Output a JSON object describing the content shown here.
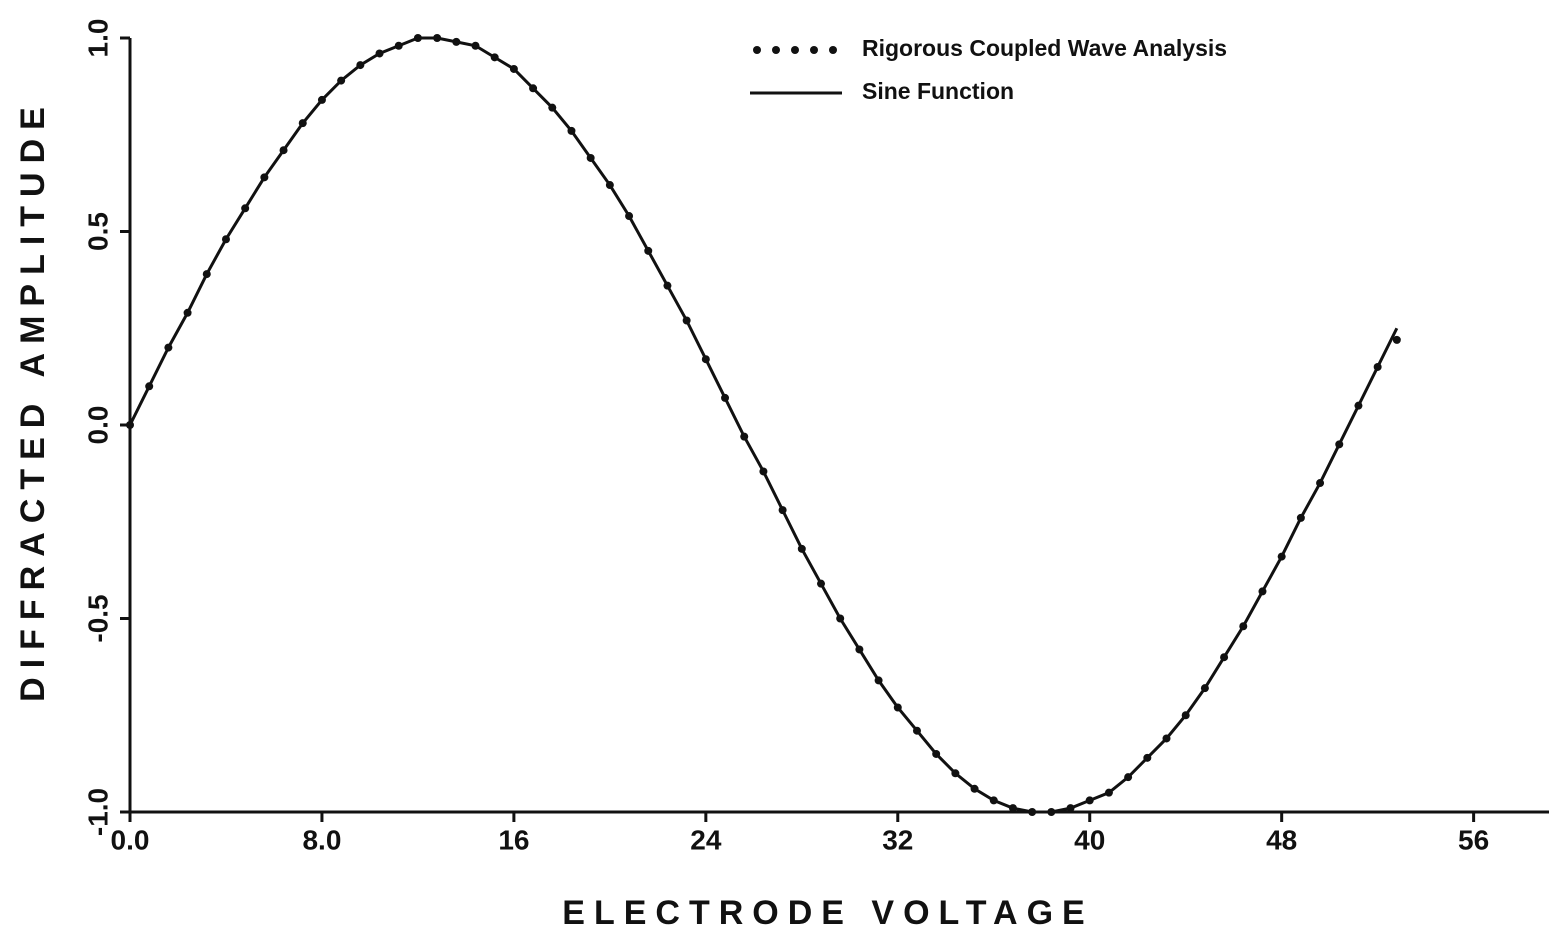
{
  "chart_data": {
    "type": "line",
    "xlabel": "ELECTRODE VOLTAGE",
    "ylabel": "DIFFRACTED AMPLITUDE",
    "x": [
      0,
      0.8,
      1.6,
      2.4,
      3.2,
      4,
      4.8,
      5.6,
      6.4,
      7.2,
      8,
      8.8,
      9.6,
      10.4,
      11.2,
      12,
      12.8,
      13.6,
      14.4,
      15.2,
      16,
      16.8,
      17.6,
      18.4,
      19.2,
      20,
      20.8,
      21.6,
      22.4,
      23.2,
      24,
      24.8,
      25.6,
      26.4,
      27.2,
      28,
      28.8,
      29.6,
      30.4,
      31.2,
      32,
      32.8,
      33.6,
      34.4,
      35.2,
      36,
      36.8,
      37.6,
      38.4,
      39.2,
      40,
      40.8,
      41.6,
      42.4,
      43.2,
      44,
      44.8,
      45.6,
      46.4,
      47.2,
      48,
      48.8,
      49.6,
      50.4,
      51.2,
      52,
      52.8
    ],
    "series": [
      {
        "name": "Rigorous Coupled Wave Analysis",
        "style": "dotted",
        "color": "#111111",
        "values": [
          0,
          0.1,
          0.2,
          0.29,
          0.39,
          0.48,
          0.56,
          0.64,
          0.71,
          0.78,
          0.84,
          0.89,
          0.93,
          0.96,
          0.98,
          1.0,
          1.0,
          0.99,
          0.98,
          0.95,
          0.92,
          0.87,
          0.82,
          0.76,
          0.69,
          0.62,
          0.54,
          0.45,
          0.36,
          0.27,
          0.17,
          0.07,
          -0.03,
          -0.12,
          -0.22,
          -0.32,
          -0.41,
          -0.5,
          -0.58,
          -0.66,
          -0.73,
          -0.79,
          -0.85,
          -0.9,
          -0.94,
          -0.97,
          -0.99,
          -1.0,
          -1.0,
          -0.99,
          -0.97,
          -0.95,
          -0.91,
          -0.86,
          -0.81,
          -0.75,
          -0.68,
          -0.6,
          -0.52,
          -0.43,
          -0.34,
          -0.24,
          -0.15,
          -0.05,
          0.05,
          0.15,
          0.22
        ]
      },
      {
        "name": "Sine Function",
        "style": "solid",
        "color": "#111111",
        "values": [
          0,
          0.1,
          0.2,
          0.29,
          0.39,
          0.48,
          0.56,
          0.64,
          0.71,
          0.78,
          0.84,
          0.89,
          0.93,
          0.96,
          0.98,
          1.0,
          1.0,
          0.99,
          0.98,
          0.95,
          0.92,
          0.87,
          0.82,
          0.76,
          0.69,
          0.62,
          0.54,
          0.45,
          0.36,
          0.27,
          0.17,
          0.07,
          -0.03,
          -0.12,
          -0.22,
          -0.32,
          -0.41,
          -0.5,
          -0.58,
          -0.66,
          -0.73,
          -0.79,
          -0.85,
          -0.9,
          -0.94,
          -0.97,
          -0.99,
          -1.0,
          -1.0,
          -0.99,
          -0.97,
          -0.95,
          -0.91,
          -0.86,
          -0.81,
          -0.75,
          -0.68,
          -0.6,
          -0.52,
          -0.43,
          -0.34,
          -0.24,
          -0.15,
          -0.05,
          0.05,
          0.15,
          0.25
        ]
      }
    ],
    "xlim": [
      0,
      59.1
    ],
    "ylim": [
      -1,
      1
    ],
    "xticks": [
      {
        "value": 0,
        "label": "0.0"
      },
      {
        "value": 8,
        "label": "8.0"
      },
      16,
      24,
      32,
      40,
      48,
      56
    ],
    "yticks": [
      {
        "value": -1,
        "label": "-1.0"
      },
      -0.5,
      {
        "value": 0,
        "label": "0.0"
      },
      0.5,
      {
        "value": 1,
        "label": "1.0"
      }
    ],
    "legend": "upper right"
  }
}
